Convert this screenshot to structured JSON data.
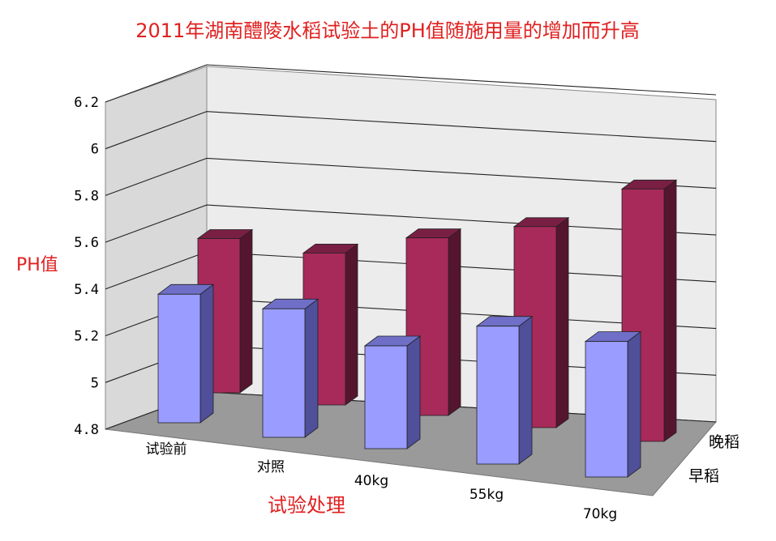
{
  "chart_data": {
    "type": "bar",
    "title": "2011年湖南醴陵水稻试验土的PH值随施用量的增加而升高",
    "xlabel": "试验处理",
    "ylabel": "PH值",
    "categories": [
      "试验前",
      "对照",
      "40kg",
      "55kg",
      "70kg"
    ],
    "series": [
      {
        "name": "早稻",
        "values": [
          5.35,
          5.35,
          5.24,
          5.39,
          5.38
        ]
      },
      {
        "name": "晚稻",
        "values": [
          5.46,
          5.45,
          5.56,
          5.66,
          5.88
        ]
      }
    ],
    "ylim": [
      4.8,
      6.2
    ],
    "yticks": [
      "4.8",
      "5",
      "5.2",
      "5.4",
      "5.6",
      "5.8",
      "6",
      "6.2"
    ],
    "grid": true,
    "legend": "none"
  },
  "colors": {
    "series_front": [
      "#9a9cff",
      "#6f6fc8",
      "#4f4f9a"
    ],
    "series_back": [
      "#a82a5a",
      "#7a1f44",
      "#55152e"
    ],
    "wall_left": "#d9d9d9",
    "wall_back": "#ececec",
    "floor": "#9a9a9a",
    "text_accent": "#e02020"
  }
}
